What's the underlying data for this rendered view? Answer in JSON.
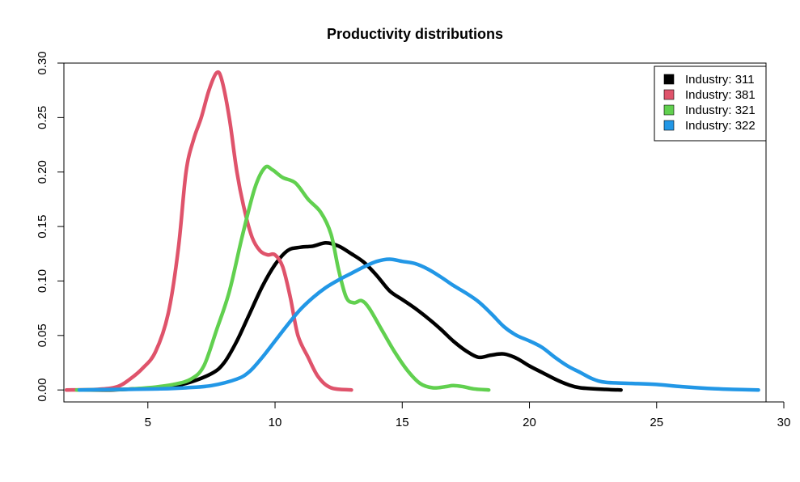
{
  "chart_data": {
    "type": "line",
    "title": "Productivity distributions",
    "xlabel": "",
    "ylabel": "",
    "xlim": [
      1.7,
      29.3
    ],
    "ylim": [
      -0.011,
      0.3
    ],
    "x_ticks": [
      5,
      10,
      15,
      20,
      25,
      30
    ],
    "y_ticks": [
      0.0,
      0.05,
      0.1,
      0.15,
      0.2,
      0.25,
      0.3
    ],
    "x_tick_labels": [
      "5",
      "10",
      "15",
      "20",
      "25",
      "30"
    ],
    "y_tick_labels": [
      "0.00",
      "0.05",
      "0.10",
      "0.15",
      "0.20",
      "0.25",
      "0.30"
    ],
    "grid": false,
    "legend_position": "top-right",
    "series": [
      {
        "name": "Industry: 311",
        "color": "#000000",
        "points": [
          [
            2.5,
            0.0
          ],
          [
            3.5,
            0.0
          ],
          [
            4.5,
            0.001
          ],
          [
            5.5,
            0.002
          ],
          [
            6.5,
            0.006
          ],
          [
            7.5,
            0.015
          ],
          [
            8.0,
            0.025
          ],
          [
            8.5,
            0.045
          ],
          [
            9.0,
            0.07
          ],
          [
            9.5,
            0.095
          ],
          [
            10.0,
            0.115
          ],
          [
            10.5,
            0.128
          ],
          [
            11.0,
            0.131
          ],
          [
            11.5,
            0.132
          ],
          [
            12.0,
            0.135
          ],
          [
            12.5,
            0.132
          ],
          [
            13.0,
            0.125
          ],
          [
            13.5,
            0.117
          ],
          [
            14.0,
            0.105
          ],
          [
            14.5,
            0.091
          ],
          [
            15.0,
            0.083
          ],
          [
            15.5,
            0.075
          ],
          [
            16.0,
            0.066
          ],
          [
            16.5,
            0.056
          ],
          [
            17.0,
            0.045
          ],
          [
            17.5,
            0.036
          ],
          [
            18.0,
            0.03
          ],
          [
            18.5,
            0.032
          ],
          [
            19.0,
            0.033
          ],
          [
            19.5,
            0.029
          ],
          [
            20.0,
            0.022
          ],
          [
            20.5,
            0.016
          ],
          [
            21.0,
            0.01
          ],
          [
            21.5,
            0.005
          ],
          [
            22.0,
            0.002
          ],
          [
            23.0,
            0.0005
          ],
          [
            23.6,
            0.0
          ]
        ]
      },
      {
        "name": "Industry: 381",
        "color": "#df536b",
        "points": [
          [
            1.8,
            0.0
          ],
          [
            3.0,
            0.0005
          ],
          [
            3.8,
            0.003
          ],
          [
            4.3,
            0.01
          ],
          [
            4.8,
            0.02
          ],
          [
            5.3,
            0.035
          ],
          [
            5.8,
            0.07
          ],
          [
            6.2,
            0.13
          ],
          [
            6.5,
            0.2
          ],
          [
            6.8,
            0.23
          ],
          [
            7.1,
            0.25
          ],
          [
            7.4,
            0.275
          ],
          [
            7.7,
            0.291
          ],
          [
            7.9,
            0.285
          ],
          [
            8.2,
            0.25
          ],
          [
            8.5,
            0.2
          ],
          [
            8.8,
            0.165
          ],
          [
            9.1,
            0.14
          ],
          [
            9.4,
            0.128
          ],
          [
            9.7,
            0.124
          ],
          [
            10.0,
            0.124
          ],
          [
            10.3,
            0.113
          ],
          [
            10.6,
            0.085
          ],
          [
            10.9,
            0.05
          ],
          [
            11.3,
            0.03
          ],
          [
            11.7,
            0.012
          ],
          [
            12.2,
            0.002
          ],
          [
            13.0,
            0.0
          ]
        ]
      },
      {
        "name": "Industry: 321",
        "color": "#61d04f",
        "points": [
          [
            2.2,
            0.0
          ],
          [
            4.0,
            0.0005
          ],
          [
            5.0,
            0.002
          ],
          [
            6.0,
            0.005
          ],
          [
            6.7,
            0.01
          ],
          [
            7.2,
            0.022
          ],
          [
            7.7,
            0.055
          ],
          [
            8.2,
            0.09
          ],
          [
            8.7,
            0.14
          ],
          [
            9.2,
            0.185
          ],
          [
            9.6,
            0.204
          ],
          [
            9.9,
            0.202
          ],
          [
            10.3,
            0.195
          ],
          [
            10.8,
            0.19
          ],
          [
            11.3,
            0.175
          ],
          [
            11.8,
            0.163
          ],
          [
            12.2,
            0.143
          ],
          [
            12.5,
            0.11
          ],
          [
            12.8,
            0.085
          ],
          [
            13.1,
            0.08
          ],
          [
            13.4,
            0.082
          ],
          [
            13.7,
            0.075
          ],
          [
            14.2,
            0.055
          ],
          [
            14.7,
            0.035
          ],
          [
            15.2,
            0.018
          ],
          [
            15.7,
            0.006
          ],
          [
            16.2,
            0.002
          ],
          [
            16.7,
            0.003
          ],
          [
            17.0,
            0.004
          ],
          [
            17.4,
            0.003
          ],
          [
            17.8,
            0.001
          ],
          [
            18.4,
            0.0
          ]
        ]
      },
      {
        "name": "Industry: 322",
        "color": "#2297e6",
        "points": [
          [
            2.3,
            0.0
          ],
          [
            4.0,
            0.0005
          ],
          [
            5.5,
            0.001
          ],
          [
            6.5,
            0.002
          ],
          [
            7.5,
            0.004
          ],
          [
            8.5,
            0.01
          ],
          [
            9.0,
            0.017
          ],
          [
            9.5,
            0.03
          ],
          [
            10.0,
            0.045
          ],
          [
            10.5,
            0.06
          ],
          [
            11.0,
            0.074
          ],
          [
            11.5,
            0.085
          ],
          [
            12.0,
            0.094
          ],
          [
            12.5,
            0.101
          ],
          [
            13.0,
            0.107
          ],
          [
            13.5,
            0.113
          ],
          [
            14.0,
            0.118
          ],
          [
            14.5,
            0.12
          ],
          [
            15.0,
            0.118
          ],
          [
            15.5,
            0.116
          ],
          [
            16.0,
            0.111
          ],
          [
            16.5,
            0.104
          ],
          [
            17.0,
            0.096
          ],
          [
            17.5,
            0.089
          ],
          [
            18.0,
            0.081
          ],
          [
            18.5,
            0.07
          ],
          [
            19.0,
            0.058
          ],
          [
            19.5,
            0.05
          ],
          [
            20.0,
            0.045
          ],
          [
            20.5,
            0.039
          ],
          [
            21.0,
            0.03
          ],
          [
            21.5,
            0.022
          ],
          [
            22.0,
            0.016
          ],
          [
            22.5,
            0.01
          ],
          [
            23.0,
            0.007
          ],
          [
            24.0,
            0.006
          ],
          [
            25.0,
            0.005
          ],
          [
            26.0,
            0.003
          ],
          [
            27.0,
            0.0015
          ],
          [
            28.0,
            0.0005
          ],
          [
            29.0,
            0.0
          ]
        ]
      }
    ]
  }
}
